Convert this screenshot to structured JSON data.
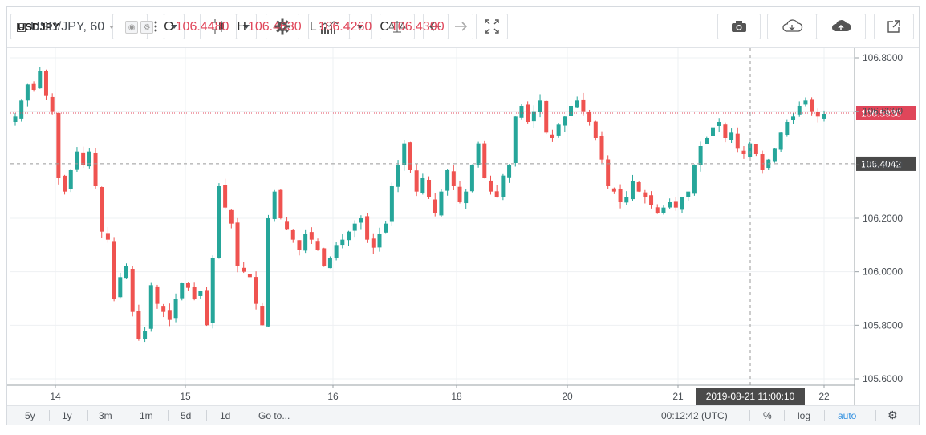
{
  "toolbar": {
    "symbol": "USDJPY",
    "interval": "1h",
    "icons": [
      "more-vertical-icon",
      "candles-icon",
      "gear-icon",
      "indicators-icon",
      "compare-icon",
      "undo-icon",
      "redo-icon",
      "fullscreen-icon",
      "camera-icon",
      "cloud-download-icon",
      "cloud-upload-icon",
      "popout-icon"
    ]
  },
  "legend": {
    "title": "USD/JPY, 60",
    "o_label": "O",
    "o_value": "106.4480",
    "h_label": "H",
    "h_value": "106.4630",
    "l_label": "L",
    "l_value": "106.4260",
    "c_label": "C",
    "c_value": "106.4390"
  },
  "crosshair": {
    "date_label": "2019-08-21 11:00:10"
  },
  "bottom": {
    "ranges": [
      "5y",
      "1y",
      "3m",
      "1m",
      "5d",
      "1d"
    ],
    "goto": "Go to...",
    "clock": "00:12:42 (UTC)",
    "percent": "%",
    "log": "log",
    "auto": "auto"
  },
  "colors": {
    "up": "#26a69a",
    "down": "#ef5350",
    "price_line": "#e0465a",
    "crosshair_label": "#4a4a4a"
  },
  "chart_data": {
    "type": "candlestick",
    "instrument": "USD/JPY",
    "interval": "60",
    "ylim": [
      105.6,
      106.8
    ],
    "y_ticks": [
      "106.8000",
      "106.6000",
      "106.4000",
      "106.2000",
      "106.0000",
      "105.8000",
      "105.6000"
    ],
    "x_ticks": [
      "14",
      "15",
      "16",
      "18",
      "20",
      "21",
      "22"
    ],
    "last_price": "106.5930",
    "crosshair_price": "106.4042",
    "grid": true,
    "legend_position": "top-left",
    "closes": [
      106.58,
      106.64,
      106.7,
      106.68,
      106.75,
      106.66,
      106.6,
      106.35,
      106.3,
      106.38,
      106.45,
      106.4,
      106.45,
      106.32,
      106.15,
      106.12,
      105.9,
      105.98,
      106.02,
      105.85,
      105.75,
      105.78,
      105.95,
      105.88,
      105.85,
      105.82,
      105.9,
      105.96,
      105.94,
      105.9,
      105.93,
      105.8,
      106.05,
      106.32,
      106.24,
      106.18,
      106.02,
      106.0,
      105.98,
      105.88,
      105.8,
      106.2,
      106.3,
      106.2,
      106.16,
      106.12,
      106.08,
      106.14,
      106.12,
      106.08,
      106.02,
      106.05,
      106.1,
      106.12,
      106.15,
      106.18,
      106.2,
      106.12,
      106.09,
      106.14,
      106.18,
      106.32,
      106.4,
      106.48,
      106.38,
      106.3,
      106.35,
      106.28,
      106.22,
      106.3,
      106.38,
      106.32,
      106.26,
      106.3,
      106.4,
      106.48,
      106.35,
      106.3,
      106.28,
      106.36,
      106.4,
      106.58,
      106.62,
      106.56,
      106.6,
      106.64,
      106.52,
      106.5,
      106.55,
      106.58,
      106.62,
      106.64,
      106.6,
      106.56,
      106.5,
      106.42,
      106.32,
      106.3,
      106.26,
      106.28,
      106.34,
      106.3,
      106.28,
      106.25,
      106.22,
      106.24,
      106.26,
      106.24,
      106.28,
      106.3,
      106.4,
      106.47,
      106.5,
      106.54,
      106.56,
      106.5,
      106.52,
      106.46,
      106.44,
      106.48,
      106.44,
      106.38,
      106.42,
      106.46,
      106.52,
      106.56,
      106.58,
      106.62,
      106.64,
      106.6,
      106.58,
      106.59
    ]
  }
}
